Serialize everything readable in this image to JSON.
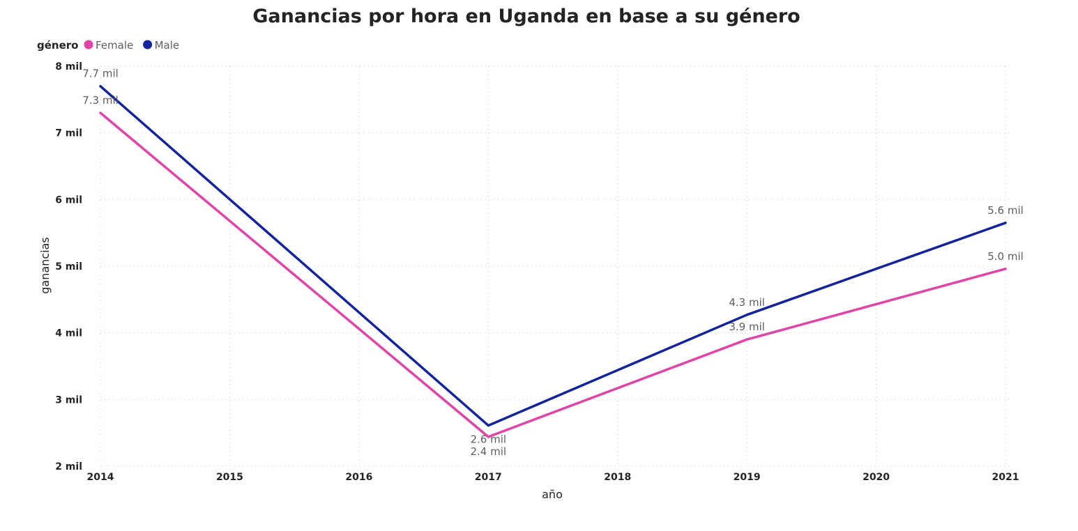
{
  "chart_data": {
    "type": "line",
    "title": "Ganancias por hora en Uganda en base a su género",
    "xlabel": "año",
    "ylabel": "ganancias",
    "x": [
      2014,
      2015,
      2016,
      2017,
      2018,
      2019,
      2020,
      2021
    ],
    "x_tick_labels": [
      "2014",
      "2015",
      "2016",
      "2017",
      "2018",
      "2019",
      "2020",
      "2021"
    ],
    "ylim": [
      2000,
      8000
    ],
    "y_ticks": [
      2000,
      3000,
      4000,
      5000,
      6000,
      7000,
      8000
    ],
    "y_tick_labels": [
      "2 mil",
      "3 mil",
      "4 mil",
      "5 mil",
      "6 mil",
      "7 mil",
      "8 mil"
    ],
    "grid": true,
    "legend": {
      "title": "género",
      "position": "top-left"
    },
    "series": [
      {
        "name": "Female",
        "color": "#e044a7",
        "points": [
          {
            "x": 2014,
            "y": 7300,
            "label": "7.3 mil"
          },
          {
            "x": 2017,
            "y": 2440,
            "label": "2.4 mil"
          },
          {
            "x": 2019,
            "y": 3900,
            "label": "3.9 mil"
          },
          {
            "x": 2021,
            "y": 4960,
            "label": "5.0 mil"
          }
        ]
      },
      {
        "name": "Male",
        "color": "#12239e",
        "points": [
          {
            "x": 2014,
            "y": 7700,
            "label": "7.7 mil"
          },
          {
            "x": 2017,
            "y": 2610,
            "label": "2.6 mil"
          },
          {
            "x": 2019,
            "y": 4270,
            "label": "4.3 mil"
          },
          {
            "x": 2021,
            "y": 5650,
            "label": "5.6 mil"
          }
        ]
      }
    ]
  }
}
